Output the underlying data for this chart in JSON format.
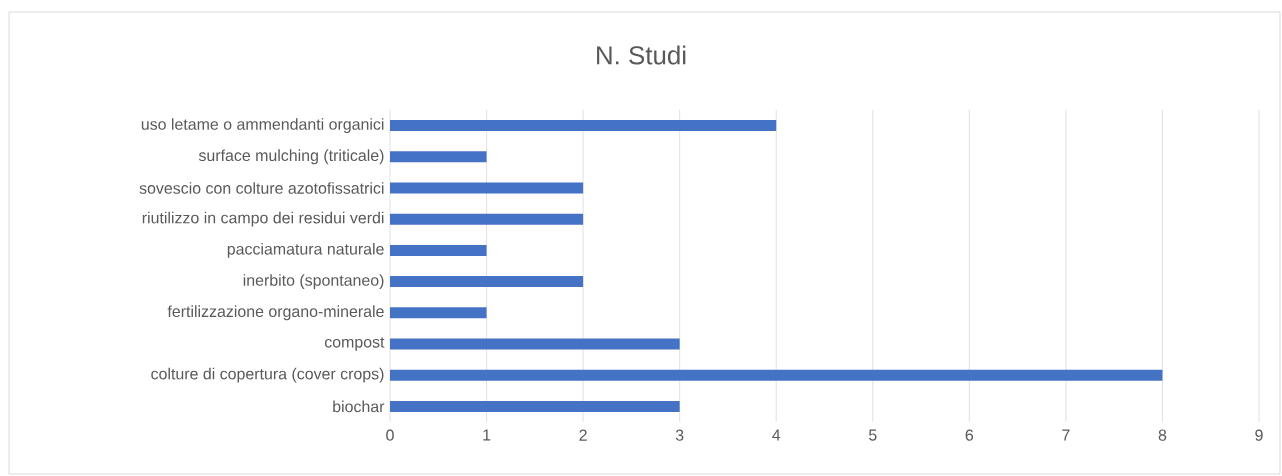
{
  "chart_data": {
    "type": "bar",
    "orientation": "horizontal",
    "title": "N. Studi",
    "categories": [
      "uso letame o ammendanti organici",
      "surface mulching (triticale)",
      "sovescio con colture azotofissatrici",
      "riutilizzo in campo dei residui verdi",
      "pacciamatura naturale",
      "inerbito (spontaneo)",
      "fertilizzazione organo-minerale",
      "compost",
      "colture di copertura (cover crops)",
      "biochar"
    ],
    "values": [
      4,
      1,
      2,
      2,
      1,
      2,
      1,
      3,
      8,
      3
    ],
    "color": "#4472c4",
    "xlim": [
      0,
      9
    ],
    "xticks": [
      0,
      1,
      2,
      3,
      4,
      5,
      6,
      7,
      8,
      9
    ],
    "grid": "x"
  }
}
